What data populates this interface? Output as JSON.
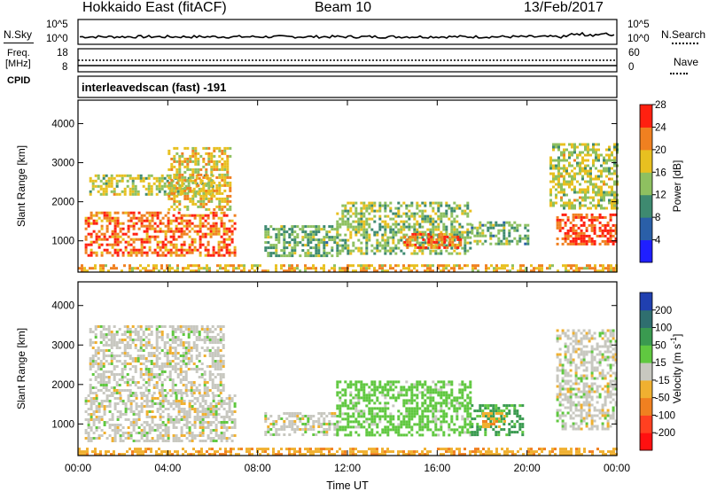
{
  "header": {
    "station": "Hokkaido East (fitACF)",
    "beam": "Beam 10",
    "date": "13/Feb/2017"
  },
  "noise_panel": {
    "left_label": "N.Sky",
    "right_label": "N.Search",
    "y_ticks_left": [
      "10^5",
      "10^0"
    ],
    "y_ticks_right": [
      "10^5",
      "10^0"
    ]
  },
  "freq_panel": {
    "left_label_1": "Freq.",
    "left_label_2": "[MHz]",
    "right_label": "Nave",
    "y_ticks_left": [
      "18",
      "8"
    ],
    "y_ticks_right": [
      "60",
      "0"
    ]
  },
  "cpid": {
    "label": "CPID",
    "text": "interleavedscan (fast) -191"
  },
  "chart_data": [
    {
      "type": "heatmap",
      "quantity": "Power",
      "ylabel": "Slant Range [km]",
      "xlabel": "Time UT",
      "x_ticks": [
        "00:00",
        "04:00",
        "08:00",
        "12:00",
        "16:00",
        "20:00",
        "00:00"
      ],
      "y_ticks": [
        1000,
        2000,
        3000,
        4000
      ],
      "ylim": [
        200,
        4600
      ],
      "xlim_hours": [
        0,
        24
      ],
      "colorbar": {
        "label": "Power [dB]",
        "ticks": [
          4,
          8,
          12,
          16,
          20,
          24,
          28
        ],
        "range": [
          0,
          32
        ],
        "colors": [
          "#1f1fff",
          "#2a5fa8",
          "#3e8a70",
          "#8ec060",
          "#e8c020",
          "#f08020",
          "#ff2010"
        ]
      },
      "regions": [
        {
          "t0": 0.3,
          "t1": 7.0,
          "r0": 600,
          "r1": 1750,
          "value": 26
        },
        {
          "t0": 0.5,
          "t1": 6.0,
          "r0": 2200,
          "r1": 2700,
          "value": 18
        },
        {
          "t0": 4.0,
          "t1": 6.8,
          "r0": 1800,
          "r1": 3400,
          "value": 20
        },
        {
          "t0": 8.3,
          "t1": 11.5,
          "r0": 600,
          "r1": 1400,
          "value": 14
        },
        {
          "t0": 11.5,
          "t1": 17.5,
          "r0": 700,
          "r1": 2000,
          "value": 16
        },
        {
          "t0": 14.5,
          "t1": 17.0,
          "r0": 800,
          "r1": 1200,
          "value": 26
        },
        {
          "t0": 17.5,
          "t1": 20.0,
          "r0": 900,
          "r1": 1500,
          "value": 14
        },
        {
          "t0": 21.3,
          "t1": 24.0,
          "r0": 900,
          "r1": 1700,
          "value": 28
        },
        {
          "t0": 21.0,
          "t1": 24.0,
          "r0": 1800,
          "r1": 3500,
          "value": 18
        },
        {
          "t0": 0.0,
          "t1": 24.0,
          "r0": 200,
          "r1": 400,
          "value": 22
        }
      ]
    },
    {
      "type": "heatmap",
      "quantity": "Velocity",
      "ylabel": "Slant Range [km]",
      "xlabel": "Time UT",
      "x_ticks": [
        "00:00",
        "04:00",
        "08:00",
        "12:00",
        "16:00",
        "20:00",
        "00:00"
      ],
      "y_ticks": [
        1000,
        2000,
        3000,
        4000
      ],
      "ylim": [
        200,
        4600
      ],
      "xlim_hours": [
        0,
        24
      ],
      "colorbar": {
        "label": "Velocity [m s^-1]",
        "ticks": [
          200,
          100,
          50,
          15,
          -15,
          -50,
          -100,
          -200
        ],
        "colors": [
          "#2040b0",
          "#2f6f6f",
          "#3a9a50",
          "#60c840",
          "#c8c8c0",
          "#f0b030",
          "#f08020",
          "#ff4020",
          "#ff1010"
        ]
      },
      "regions": [
        {
          "t0": 0.3,
          "t1": 7.0,
          "r0": 600,
          "r1": 1750,
          "value": 0
        },
        {
          "t0": 0.5,
          "t1": 6.5,
          "r0": 1800,
          "r1": 3500,
          "value": 0
        },
        {
          "t0": 8.3,
          "t1": 11.5,
          "r0": 700,
          "r1": 1300,
          "value": 0
        },
        {
          "t0": 11.5,
          "t1": 17.5,
          "r0": 700,
          "r1": 2100,
          "value": 30
        },
        {
          "t0": 17.5,
          "t1": 19.8,
          "r0": 700,
          "r1": 1500,
          "value": 60
        },
        {
          "t0": 18.0,
          "t1": 19.0,
          "r0": 900,
          "r1": 1300,
          "value": -40
        },
        {
          "t0": 21.3,
          "t1": 24.0,
          "r0": 900,
          "r1": 3400,
          "value": 0
        },
        {
          "t0": 0.0,
          "t1": 24.0,
          "r0": 200,
          "r1": 400,
          "value": -40
        }
      ]
    }
  ],
  "power_cb_label": "Power [dB]",
  "velocity_cb_label_main": "Velocity [m s",
  "velocity_cb_label_sup": "-1",
  "velocity_cb_label_end": "]"
}
